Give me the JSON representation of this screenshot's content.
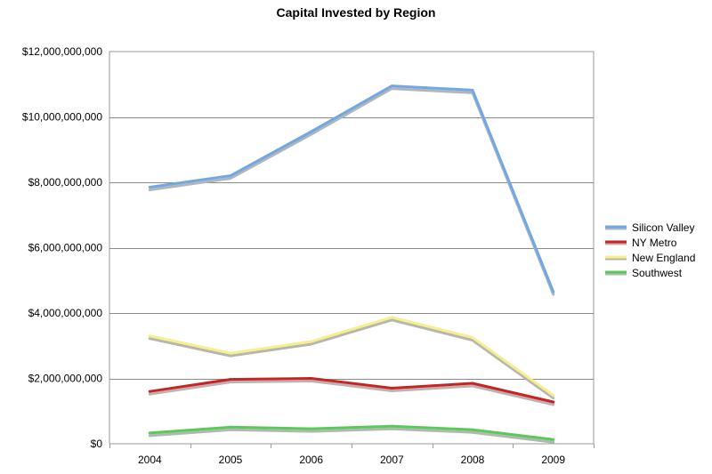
{
  "chart_data": {
    "type": "line",
    "title": "Capital Invested by Region",
    "xlabel": "",
    "ylabel": "",
    "categories": [
      "2004",
      "2005",
      "2006",
      "2007",
      "2008",
      "2009"
    ],
    "series": [
      {
        "name": "Silicon Valley",
        "color": "#6fa8e6",
        "values": [
          7850000000,
          8200000000,
          9550000000,
          10950000000,
          10820000000,
          4650000000
        ]
      },
      {
        "name": "NY Metro",
        "color": "#cc2222",
        "values": [
          1600000000,
          1970000000,
          2000000000,
          1700000000,
          1850000000,
          1280000000
        ]
      },
      {
        "name": "New England",
        "color": "#f7ef8a",
        "values": [
          3300000000,
          2770000000,
          3130000000,
          3870000000,
          3250000000,
          1480000000
        ]
      },
      {
        "name": "Southwest",
        "color": "#55cc55",
        "values": [
          330000000,
          510000000,
          460000000,
          540000000,
          430000000,
          130000000
        ]
      }
    ],
    "ylim": [
      0,
      12000000000
    ],
    "yticks": [
      0,
      2000000000,
      4000000000,
      6000000000,
      8000000000,
      10000000000,
      12000000000
    ],
    "ytick_labels": [
      "$0",
      "$2,000,000,000",
      "$4,000,000,000",
      "$6,000,000,000",
      "$8,000,000,000",
      "$10,000,000,000",
      "$12,000,000,000"
    ],
    "grid": true,
    "legend_position": "right"
  }
}
